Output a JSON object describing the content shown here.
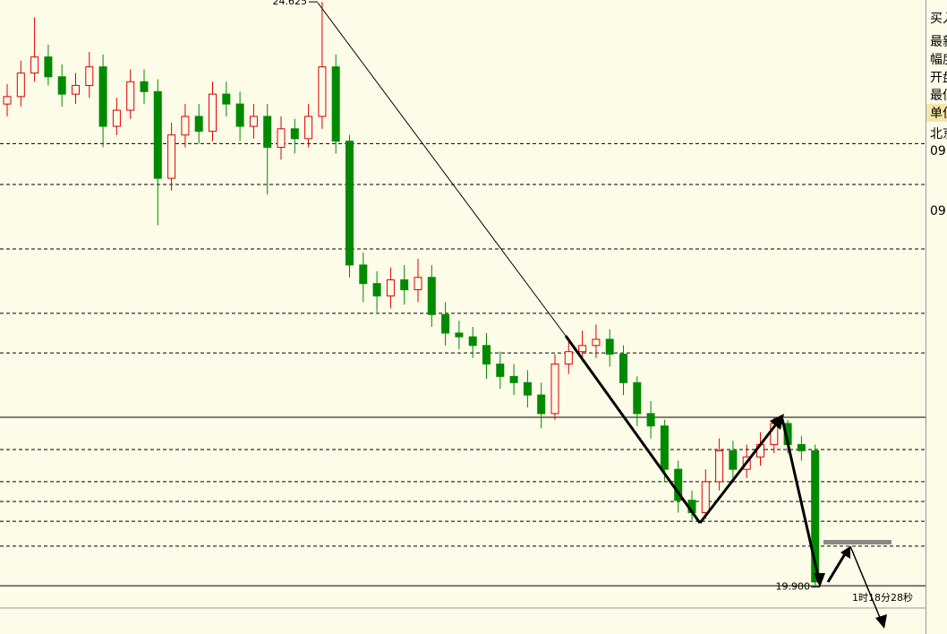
{
  "chart_data": {
    "type": "candlestick",
    "ylim": [
      19.52,
      24.64
    ],
    "open": [
      23.8,
      23.86,
      24.05,
      24.18,
      24.02,
      23.88,
      23.95,
      24.1,
      23.62,
      23.75,
      23.98,
      23.9,
      23.2,
      23.55,
      23.7,
      23.58,
      23.88,
      23.8,
      23.62,
      23.7,
      23.45,
      23.6,
      23.52,
      23.7,
      24.1,
      23.5,
      22.5,
      22.35,
      22.25,
      22.38,
      22.3,
      22.4,
      22.1,
      21.95,
      21.92,
      21.85,
      21.7,
      21.6,
      21.55,
      21.45,
      21.3,
      21.7,
      21.8,
      21.85,
      21.9,
      21.78,
      21.55,
      21.3,
      21.2,
      20.85,
      20.6,
      20.5,
      20.75,
      21.0,
      20.85,
      20.95,
      21.05,
      21.22,
      21.05,
      21.0
    ],
    "high": [
      23.96,
      24.15,
      24.5,
      24.28,
      24.12,
      24.05,
      24.22,
      24.2,
      23.85,
      24.08,
      24.08,
      24.0,
      23.65,
      23.8,
      23.8,
      23.98,
      23.98,
      23.9,
      23.8,
      23.8,
      23.7,
      23.68,
      23.8,
      24.625,
      24.2,
      23.55,
      22.6,
      22.45,
      22.48,
      22.5,
      22.55,
      22.5,
      22.2,
      22.05,
      22.0,
      21.95,
      21.8,
      21.7,
      21.65,
      21.55,
      21.78,
      21.9,
      21.97,
      22.02,
      21.98,
      21.85,
      21.6,
      21.4,
      21.25,
      20.92,
      20.68,
      20.85,
      21.1,
      21.08,
      21.05,
      21.15,
      21.27,
      21.25,
      21.12,
      21.05
    ],
    "low": [
      23.7,
      23.78,
      23.98,
      23.95,
      23.78,
      23.8,
      23.85,
      23.45,
      23.55,
      23.68,
      23.8,
      22.82,
      23.1,
      23.45,
      23.48,
      23.5,
      23.7,
      23.5,
      23.52,
      23.07,
      23.35,
      23.4,
      23.45,
      23.6,
      23.4,
      22.4,
      22.2,
      22.12,
      22.15,
      22.18,
      22.2,
      22.0,
      21.85,
      21.82,
      21.75,
      21.58,
      21.5,
      21.45,
      21.35,
      21.18,
      21.25,
      21.62,
      21.72,
      21.75,
      21.68,
      21.45,
      21.2,
      21.1,
      20.75,
      20.5,
      20.44,
      20.45,
      20.68,
      20.78,
      20.78,
      20.88,
      20.98,
      20.98,
      20.92,
      19.9
    ],
    "close": [
      23.86,
      24.05,
      24.18,
      24.02,
      23.88,
      23.95,
      24.1,
      23.62,
      23.75,
      23.98,
      23.9,
      23.2,
      23.55,
      23.7,
      23.58,
      23.88,
      23.8,
      23.62,
      23.7,
      23.45,
      23.6,
      23.52,
      23.7,
      24.1,
      23.5,
      22.5,
      22.35,
      22.25,
      22.38,
      22.3,
      22.4,
      22.1,
      21.95,
      21.92,
      21.85,
      21.7,
      21.6,
      21.55,
      21.45,
      21.3,
      21.7,
      21.8,
      21.85,
      21.9,
      21.78,
      21.55,
      21.3,
      21.2,
      20.85,
      20.6,
      20.5,
      20.75,
      21.0,
      20.85,
      20.95,
      21.05,
      21.22,
      21.05,
      21.0,
      19.94
    ],
    "up_color": "#e00000",
    "down_color": "#008a00",
    "levels": [
      {
        "value": 23.48,
        "style": "dashed"
      },
      {
        "value": 23.15,
        "style": "dashed"
      },
      {
        "value": 22.63,
        "style": "dashed"
      },
      {
        "value": 22.11,
        "style": "dashed"
      },
      {
        "value": 21.79,
        "style": "dashed"
      },
      {
        "value": 21.27,
        "style": "solid"
      },
      {
        "value": 21.01,
        "style": "dashed"
      },
      {
        "value": 20.75,
        "style": "dashed"
      },
      {
        "value": 20.59,
        "style": "dashed"
      },
      {
        "value": 20.43,
        "style": "dashed"
      },
      {
        "value": 20.23,
        "style": "dashed"
      },
      {
        "value": 19.91,
        "style": "solid"
      }
    ],
    "max_marker": {
      "value": 24.625,
      "label": "24.625"
    },
    "min_marker": {
      "value": 19.9,
      "label": "19.900"
    },
    "time_label": "1时18分28秒"
  },
  "side_panel": {
    "rows": [
      "买入",
      "最新",
      "幅度",
      "开盘",
      "最低",
      "单位",
      "北京",
      "09",
      "09"
    ]
  }
}
